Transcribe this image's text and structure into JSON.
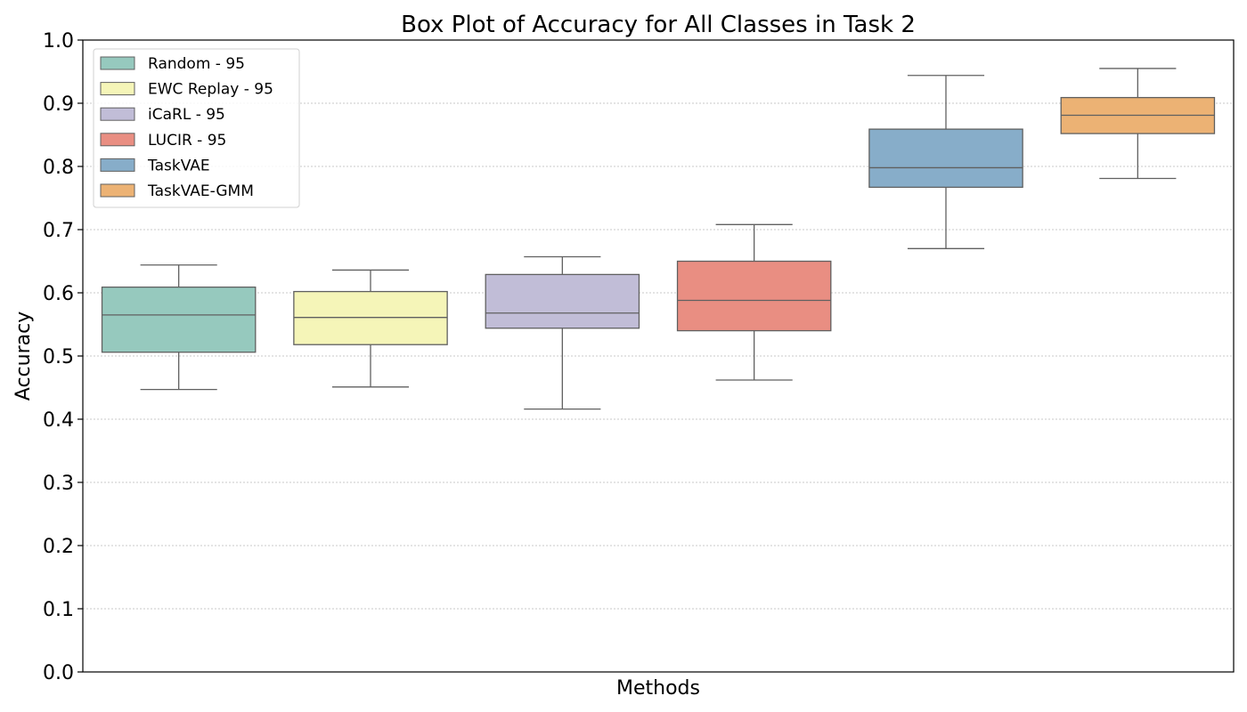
{
  "chart_data": {
    "type": "box",
    "title": "Box Plot of Accuracy for All Classes in Task 2",
    "xlabel": "Methods",
    "ylabel": "Accuracy",
    "ylim": [
      0.0,
      1.0
    ],
    "yticks": [
      0.0,
      0.1,
      0.2,
      0.3,
      0.4,
      0.5,
      0.6,
      0.7,
      0.8,
      0.9,
      1.0
    ],
    "ytick_labels": [
      "0.0",
      "0.1",
      "0.2",
      "0.3",
      "0.4",
      "0.5",
      "0.6",
      "0.7",
      "0.8",
      "0.9",
      "1.0"
    ],
    "grid": "horizontal-dotted",
    "legend_position": "top-left",
    "series": [
      {
        "name": "Random - 95",
        "color": "#96c9be",
        "whisker_low": 0.447,
        "q1": 0.506,
        "median": 0.565,
        "q3": 0.609,
        "whisker_high": 0.644
      },
      {
        "name": "EWC Replay - 95",
        "color": "#f5f5b8",
        "whisker_low": 0.451,
        "q1": 0.518,
        "median": 0.561,
        "q3": 0.602,
        "whisker_high": 0.636
      },
      {
        "name": "iCaRL - 95",
        "color": "#c1bdd7",
        "whisker_low": 0.416,
        "q1": 0.544,
        "median": 0.568,
        "q3": 0.629,
        "whisker_high": 0.657
      },
      {
        "name": "LUCIR - 95",
        "color": "#e98e82",
        "whisker_low": 0.462,
        "q1": 0.54,
        "median": 0.588,
        "q3": 0.65,
        "whisker_high": 0.708
      },
      {
        "name": "TaskVAE",
        "color": "#87adc9",
        "whisker_low": 0.67,
        "q1": 0.767,
        "median": 0.798,
        "q3": 0.859,
        "whisker_high": 0.944
      },
      {
        "name": "TaskVAE-GMM",
        "color": "#ecb274",
        "whisker_low": 0.781,
        "q1": 0.852,
        "median": 0.881,
        "q3": 0.909,
        "whisker_high": 0.955
      }
    ]
  }
}
